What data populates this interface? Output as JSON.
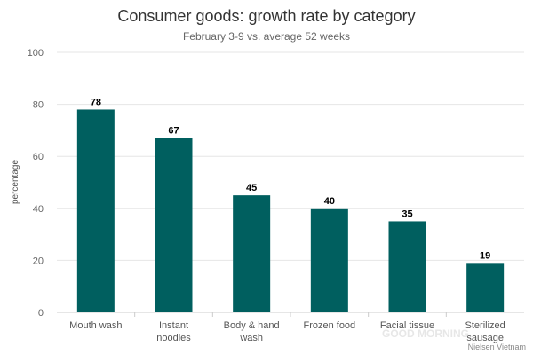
{
  "chart_data": {
    "type": "bar",
    "title": "Consumer goods: growth rate by category",
    "subtitle": "February 3-9 vs. average 52 weeks",
    "ylabel": "percentage",
    "xlabel": "",
    "ylim": [
      0,
      100
    ],
    "yticks": [
      0,
      20,
      40,
      60,
      80,
      100
    ],
    "categories": [
      "Mouth wash",
      "Instant noodles",
      "Body & hand wash",
      "Frozen food",
      "Facial tissue",
      "Sterilized sausage"
    ],
    "values": [
      78,
      67,
      45,
      40,
      35,
      19
    ],
    "bar_color": "#005f5f",
    "grid": true,
    "legend": "none"
  },
  "watermark_text": "GOOD MORNING",
  "source": "Nielsen Vietnam"
}
